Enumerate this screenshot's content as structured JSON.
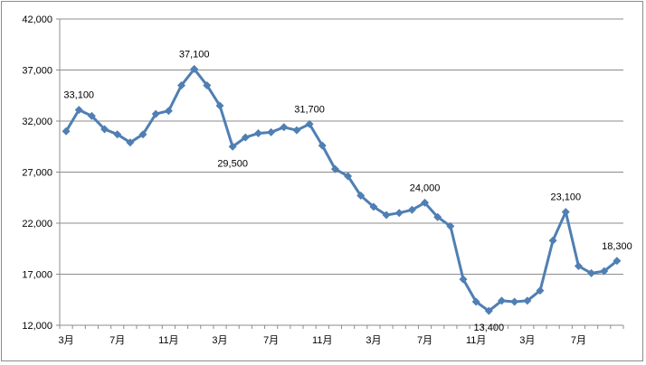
{
  "chart_data": {
    "type": "line",
    "title": "",
    "xlabel": "",
    "ylabel": "",
    "ylim": [
      12000,
      42000
    ],
    "yticks": [
      12000,
      17000,
      22000,
      27000,
      32000,
      37000,
      42000
    ],
    "ytick_labels": [
      "12,000",
      "17,000",
      "22,000",
      "27,000",
      "32,000",
      "37,000",
      "42,000"
    ],
    "grid": "horizontal",
    "legend": "none",
    "x_tick_labels": [
      {
        "index": 0,
        "label": "3月"
      },
      {
        "index": 4,
        "label": "7月"
      },
      {
        "index": 8,
        "label": "11月"
      },
      {
        "index": 12,
        "label": "3月"
      },
      {
        "index": 16,
        "label": "7月"
      },
      {
        "index": 20,
        "label": "11月"
      },
      {
        "index": 24,
        "label": "3月"
      },
      {
        "index": 28,
        "label": "7月"
      },
      {
        "index": 32,
        "label": "11月"
      },
      {
        "index": 36,
        "label": "3月"
      },
      {
        "index": 40,
        "label": "7月"
      }
    ],
    "series": [
      {
        "color": "#4f7fb3",
        "values": [
          31000,
          33100,
          32500,
          31200,
          30700,
          29900,
          30700,
          32700,
          33000,
          35500,
          37100,
          35500,
          33500,
          29500,
          30400,
          30800,
          30900,
          31400,
          31100,
          31700,
          29600,
          27300,
          26600,
          24700,
          23600,
          22800,
          23000,
          23300,
          24000,
          22600,
          21700,
          16500,
          14300,
          13400,
          14400,
          14300,
          14400,
          15400,
          20300,
          23100,
          17800,
          17100,
          17300,
          18300
        ]
      }
    ],
    "data_labels": [
      {
        "index": 1,
        "text": "33,100",
        "placement": "above"
      },
      {
        "index": 10,
        "text": "37,100",
        "placement": "above"
      },
      {
        "index": 13,
        "text": "29,500",
        "placement": "below"
      },
      {
        "index": 19,
        "text": "31,700",
        "placement": "above"
      },
      {
        "index": 28,
        "text": "24,000",
        "placement": "above"
      },
      {
        "index": 33,
        "text": "13,400",
        "placement": "below"
      },
      {
        "index": 39,
        "text": "23,100",
        "placement": "above"
      },
      {
        "index": 43,
        "text": "18,300",
        "placement": "above"
      }
    ]
  }
}
